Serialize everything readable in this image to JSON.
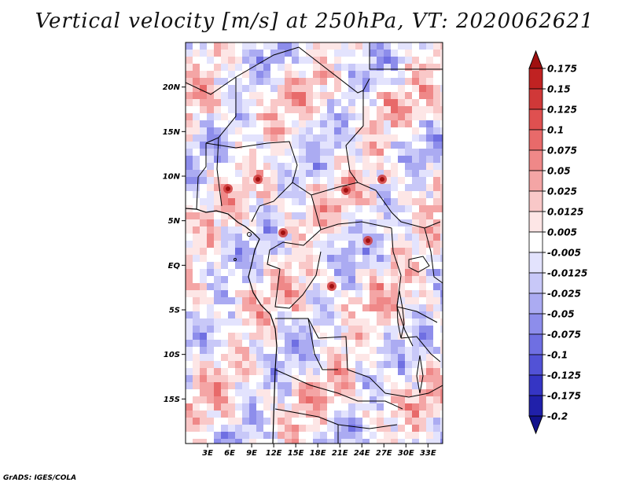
{
  "title": "Vertical velocity [m/s] at 250hPa, VT: 2020062621",
  "credit": "GrADS: IGES/COLA",
  "map": {
    "lon_range": [
      0,
      35
    ],
    "lat_range": [
      -20,
      25
    ],
    "lat_ticks": [
      {
        "lat": 20,
        "label": "20N"
      },
      {
        "lat": 15,
        "label": "15N"
      },
      {
        "lat": 10,
        "label": "10N"
      },
      {
        "lat": 5,
        "label": "5N"
      },
      {
        "lat": 0,
        "label": "EQ"
      },
      {
        "lat": -5,
        "label": "5S"
      },
      {
        "lat": -10,
        "label": "10S"
      },
      {
        "lat": -15,
        "label": "15S"
      }
    ],
    "lon_ticks": [
      {
        "lon": 3,
        "label": "3E"
      },
      {
        "lon": 6,
        "label": "6E"
      },
      {
        "lon": 9,
        "label": "9E"
      },
      {
        "lon": 12,
        "label": "12E"
      },
      {
        "lon": 15,
        "label": "15E"
      },
      {
        "lon": 18,
        "label": "18E"
      },
      {
        "lon": 21,
        "label": "21E"
      },
      {
        "lon": 24,
        "label": "24E"
      },
      {
        "lon": 27,
        "label": "27E"
      },
      {
        "lon": 30,
        "label": "30E"
      },
      {
        "lon": 33,
        "label": "33E"
      }
    ]
  },
  "colorbar": {
    "labels": [
      "0.175",
      "0.15",
      "0.125",
      "0.1",
      "0.075",
      "0.05",
      "0.025",
      "0.0125",
      "0.005",
      "-0.005",
      "-0.0125",
      "-0.025",
      "-0.05",
      "-0.075",
      "-0.1",
      "-0.125",
      "-0.175",
      "-0.2"
    ],
    "colors": [
      "#a01010",
      "#c02222",
      "#d03838",
      "#df5050",
      "#e86a6a",
      "#ef8888",
      "#f4a5a5",
      "#f9c8c8",
      "#fde6e6",
      "#ffffff",
      "#e3e3fd",
      "#c8c8f8",
      "#ababf2",
      "#8d8deb",
      "#6f6fe2",
      "#5252d6",
      "#3535c4",
      "#2020aa",
      "#12128c"
    ]
  }
}
